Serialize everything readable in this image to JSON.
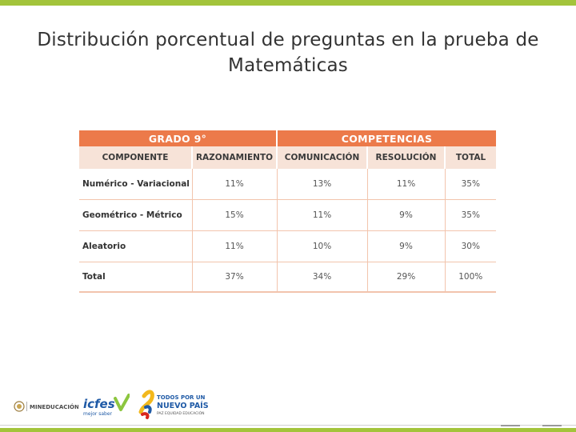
{
  "slide": {
    "title_line1": "Distribución porcentual de preguntas en la prueba de",
    "title_line2": "Matemáticas"
  },
  "table": {
    "grade_header": "GRADO 9°",
    "competencias_header": "COMPETENCIAS",
    "columns": [
      "COMPONENTE",
      "RAZONAMIENTO",
      "COMUNICACIÓN",
      "RESOLUCIÓN",
      "TOTAL"
    ],
    "rows": [
      {
        "label": "Numérico - Variacional",
        "values": [
          "11%",
          "13%",
          "11%",
          "35%"
        ]
      },
      {
        "label": "Geométrico - Métrico",
        "values": [
          "15%",
          "11%",
          "9%",
          "35%"
        ]
      },
      {
        "label": "Aleatorio",
        "values": [
          "11%",
          "10%",
          "9%",
          "30%"
        ]
      },
      {
        "label": "Total",
        "values": [
          "37%",
          "34%",
          "29%",
          "100%"
        ]
      }
    ]
  },
  "footer": {
    "logos": {
      "mineducacion": "MINEDUCACIÓN",
      "icfes": "icfes",
      "icfes_tagline": "mejor saber",
      "nuevopais_line1": "TODOS POR UN",
      "nuevopais_line2": "NUEVO PAÍS",
      "nuevopais_tagline": "PAZ  EQUIDAD  EDUCACIÓN"
    }
  },
  "colors": {
    "accent_green": "#a3c43b",
    "table_header_orange": "#ec7a4a",
    "table_subheader": "#f7e3d8",
    "table_lines": "#f2c4ad"
  }
}
